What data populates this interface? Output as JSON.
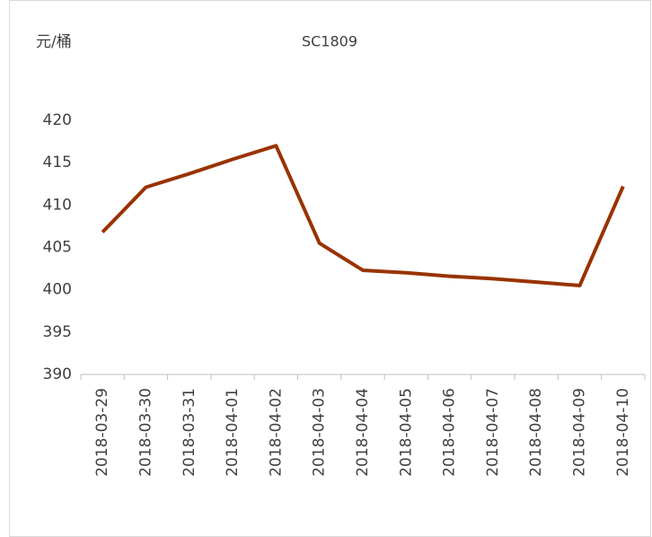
{
  "chart_data": {
    "type": "line",
    "title": "SC1809",
    "y_label": "元/桶",
    "categories": [
      "2018-03-29",
      "2018-03-30",
      "2018-03-31",
      "2018-04-01",
      "2018-04-02",
      "2018-04-03",
      "2018-04-04",
      "2018-04-05",
      "2018-04-06",
      "2018-04-07",
      "2018-04-08",
      "2018-04-09",
      "2018-04-10"
    ],
    "series": [
      {
        "name": "SC1809",
        "color": "#993300",
        "values": [
          406.8,
          412.1,
          413.7,
          415.4,
          417.0,
          405.5,
          402.3,
          402.0,
          401.6,
          401.3,
          400.9,
          400.5,
          412.2
        ]
      }
    ],
    "ylim": [
      390,
      420
    ],
    "yticks": [
      390,
      395,
      400,
      405,
      410,
      415,
      420
    ],
    "grid": false
  }
}
